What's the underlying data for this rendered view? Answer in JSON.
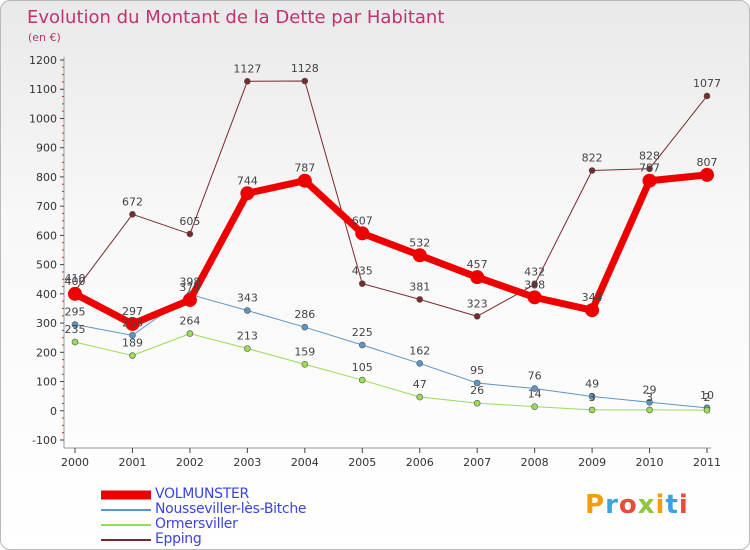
{
  "chart": {
    "title": "Evolution du Montant de la Dette par Habitant",
    "subtitle": "(en €)"
  },
  "chart_data": {
    "type": "line",
    "title": "Evolution du Montant de la Dette par Habitant",
    "subtitle": "(en €)",
    "x": [
      2000,
      2001,
      2002,
      2003,
      2004,
      2005,
      2006,
      2007,
      2008,
      2009,
      2010,
      2011
    ],
    "ylim": [
      -100,
      1200
    ],
    "yticks": [
      -100,
      0,
      100,
      200,
      300,
      400,
      500,
      600,
      700,
      800,
      900,
      1000,
      1100,
      1200
    ],
    "grid": false,
    "legend_position": "bottom-left",
    "series": [
      {
        "name": "VOLMUNSTER",
        "color": "#ee0000",
        "width": 7,
        "values": [
          400,
          297,
          379,
          744,
          787,
          607,
          532,
          457,
          388,
          344,
          787,
          807
        ]
      },
      {
        "name": "Nousseviller-lès-Bitche",
        "color": "#5a96c8",
        "width": 1,
        "values": [
          295,
          258,
          398,
          343,
          286,
          225,
          162,
          95,
          76,
          49,
          29,
          10
        ]
      },
      {
        "name": "Ormersviller",
        "color": "#99dd55",
        "width": 1,
        "values": [
          235,
          189,
          264,
          213,
          159,
          105,
          47,
          26,
          14,
          3,
          3,
          2
        ]
      },
      {
        "name": "Epping",
        "color": "#7a2a2a",
        "width": 1,
        "values": [
          410,
          672,
          605,
          1127,
          1128,
          435,
          381,
          323,
          432,
          822,
          828,
          1077
        ]
      }
    ]
  },
  "logo": {
    "text": "Proxiti",
    "letters": [
      {
        "ch": "P",
        "color": "#f39c12"
      },
      {
        "ch": "r",
        "color": "#3ba4dc"
      },
      {
        "ch": "o",
        "color": "#e74c3c"
      },
      {
        "ch": "x",
        "color": "#8dc63f"
      },
      {
        "ch": "i",
        "color": "#f39c12"
      },
      {
        "ch": "t",
        "color": "#3ba4dc"
      },
      {
        "ch": "i",
        "color": "#e74c3c"
      }
    ]
  }
}
